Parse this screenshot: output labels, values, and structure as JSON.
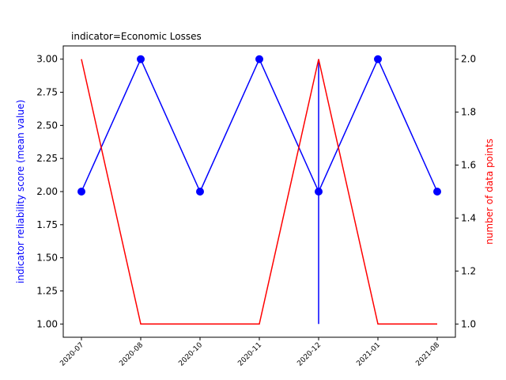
{
  "chart_data": {
    "type": "line",
    "title": "indicator=Economic Losses",
    "x": [
      "2020-07",
      "2020-08",
      "2020-10",
      "2020-11",
      "2020-12",
      "2021-01",
      "2021-08"
    ],
    "y_left_label": "indicator reliability score (mean value)",
    "y_right_label": "number of data points",
    "y_left_lim": [
      0.9,
      3.1
    ],
    "y_right_lim": [
      0.95,
      2.05
    ],
    "y_left_ticks": [
      "1.00",
      "1.25",
      "1.50",
      "1.75",
      "2.00",
      "2.25",
      "2.50",
      "2.75",
      "3.00"
    ],
    "y_right_ticks": [
      "1.0",
      "1.2",
      "1.4",
      "1.6",
      "1.8",
      "2.0"
    ],
    "grid": false,
    "series": [
      {
        "axis": "left",
        "color": "#0000ff",
        "markers": true,
        "values": [
          2,
          3,
          2,
          3,
          2,
          3,
          2
        ],
        "error_bars": [
          {
            "x": "2020-12",
            "low": 1.0,
            "high": 3.0
          }
        ]
      },
      {
        "axis": "right",
        "color": "#ff0000",
        "markers": false,
        "values": [
          2,
          1,
          1,
          1,
          2,
          1,
          1
        ]
      }
    ],
    "colors": {
      "left_axis_label": "#0000ff",
      "right_axis_label": "#ff0000"
    }
  }
}
